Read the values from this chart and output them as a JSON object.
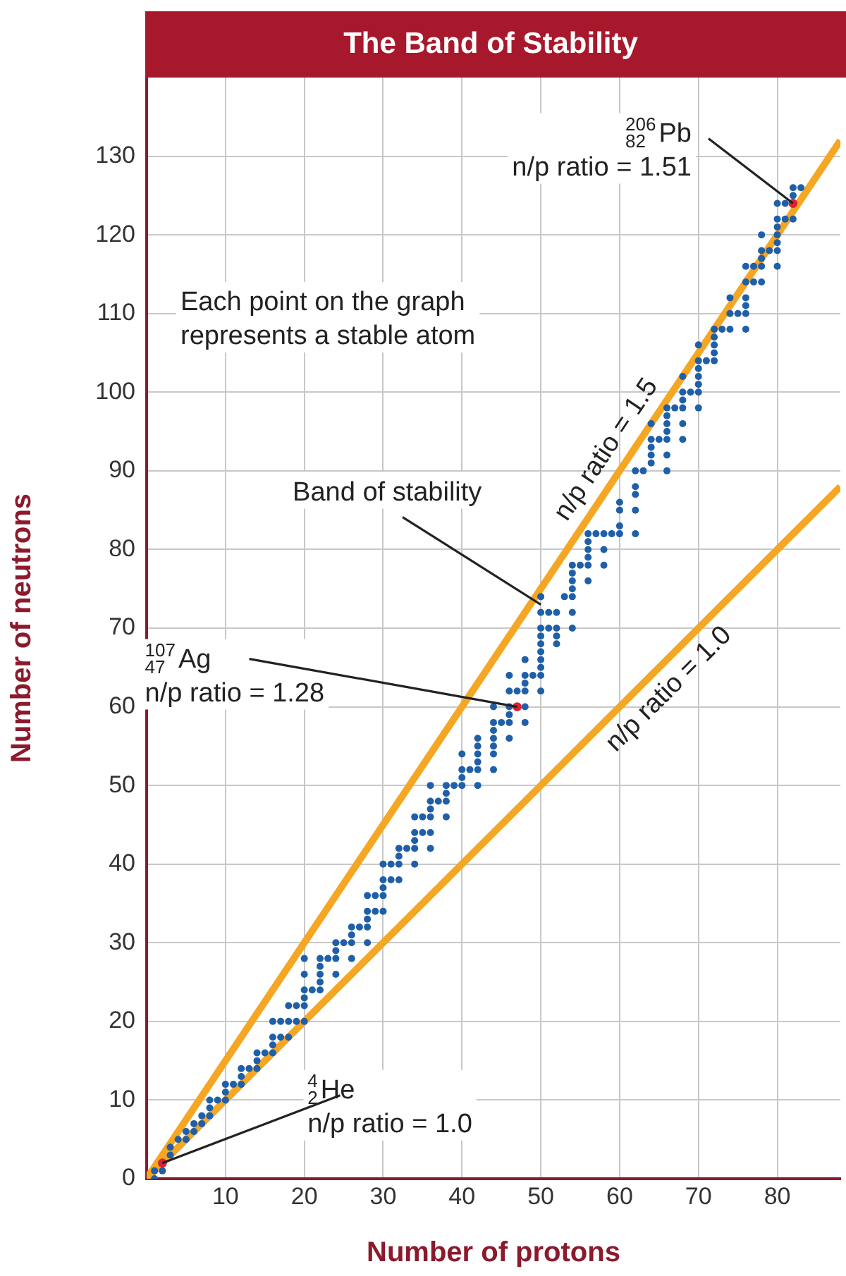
{
  "chart_data": {
    "type": "scatter",
    "title": "The Band of Stability",
    "xlabel": "Number of protons",
    "ylabel": "Number of neutrons",
    "xlim": [
      0,
      88
    ],
    "ylim": [
      0,
      140
    ],
    "xticks": [
      10,
      20,
      30,
      40,
      50,
      60,
      70,
      80
    ],
    "yticks": [
      0,
      10,
      20,
      30,
      40,
      50,
      60,
      70,
      80,
      90,
      100,
      110,
      120,
      130
    ],
    "grid": true,
    "legend": false,
    "marker": "circle",
    "series": [
      {
        "color": "#1f5fa8",
        "x": [
          1,
          1,
          2,
          3,
          3,
          4,
          5,
          5,
          6,
          6,
          7,
          7,
          8,
          8,
          8,
          9,
          10,
          10,
          10,
          11,
          12,
          12,
          12,
          13,
          14,
          14,
          14,
          15,
          16,
          16,
          16,
          16,
          17,
          17,
          18,
          18,
          18,
          19,
          19,
          20,
          20,
          20,
          20,
          20,
          20,
          21,
          22,
          22,
          22,
          22,
          22,
          23,
          24,
          24,
          24,
          24,
          25,
          26,
          26,
          26,
          26,
          27,
          28,
          28,
          28,
          28,
          28,
          29,
          29,
          30,
          30,
          30,
          30,
          30,
          31,
          31,
          32,
          32,
          32,
          32,
          33,
          34,
          34,
          34,
          34,
          34,
          35,
          35,
          36,
          36,
          36,
          36,
          36,
          36,
          37,
          38,
          38,
          38,
          38,
          39,
          40,
          40,
          40,
          40,
          41,
          42,
          42,
          42,
          42,
          42,
          42,
          44,
          44,
          44,
          44,
          44,
          44,
          44,
          45,
          46,
          46,
          46,
          46,
          46,
          46,
          47,
          48,
          48,
          48,
          48,
          48,
          48,
          49,
          50,
          50,
          50,
          50,
          50,
          50,
          50,
          50,
          50,
          50,
          51,
          51,
          52,
          52,
          52,
          52,
          53,
          54,
          54,
          54,
          54,
          54,
          54,
          54,
          55,
          56,
          56,
          56,
          56,
          56,
          56,
          57,
          58,
          58,
          58,
          59,
          60,
          60,
          60,
          60,
          62,
          62,
          62,
          62,
          62,
          63,
          64,
          64,
          64,
          64,
          64,
          65,
          66,
          66,
          66,
          66,
          66,
          66,
          66,
          67,
          68,
          68,
          68,
          68,
          68,
          68,
          69,
          70,
          70,
          70,
          70,
          70,
          70,
          70,
          71,
          72,
          72,
          72,
          72,
          72,
          73,
          74,
          74,
          74,
          75,
          76,
          76,
          76,
          76,
          76,
          76,
          77,
          77,
          78,
          78,
          78,
          78,
          78,
          79,
          80,
          80,
          80,
          80,
          80,
          80,
          80,
          81,
          81,
          82,
          82,
          82,
          83
        ],
        "values": [
          0,
          1,
          1,
          3,
          4,
          5,
          5,
          6,
          6,
          7,
          7,
          8,
          8,
          9,
          10,
          10,
          10,
          11,
          12,
          12,
          12,
          13,
          14,
          14,
          14,
          15,
          16,
          16,
          16,
          17,
          18,
          20,
          18,
          20,
          18,
          20,
          22,
          20,
          22,
          20,
          22,
          23,
          24,
          26,
          28,
          24,
          24,
          25,
          26,
          27,
          28,
          28,
          26,
          28,
          29,
          30,
          30,
          28,
          30,
          31,
          32,
          32,
          30,
          32,
          33,
          34,
          36,
          34,
          36,
          34,
          36,
          37,
          38,
          40,
          38,
          40,
          38,
          40,
          41,
          42,
          42,
          40,
          42,
          43,
          44,
          46,
          44,
          46,
          42,
          44,
          46,
          47,
          48,
          50,
          48,
          46,
          48,
          49,
          50,
          50,
          50,
          51,
          52,
          54,
          52,
          50,
          52,
          53,
          54,
          55,
          56,
          52,
          54,
          55,
          56,
          57,
          58,
          60,
          58,
          56,
          58,
          59,
          60,
          62,
          64,
          62,
          58,
          60,
          62,
          63,
          64,
          66,
          64,
          62,
          64,
          65,
          66,
          67,
          68,
          69,
          70,
          72,
          74,
          70,
          72,
          68,
          69,
          70,
          72,
          74,
          70,
          72,
          74,
          75,
          76,
          77,
          78,
          78,
          76,
          78,
          79,
          80,
          81,
          82,
          82,
          78,
          80,
          82,
          82,
          82,
          83,
          85,
          86,
          82,
          85,
          87,
          88,
          90,
          90,
          91,
          92,
          93,
          94,
          96,
          94,
          90,
          92,
          94,
          95,
          96,
          97,
          98,
          98,
          94,
          96,
          98,
          99,
          100,
          102,
          100,
          98,
          100,
          101,
          102,
          103,
          104,
          106,
          104,
          104,
          105,
          106,
          107,
          108,
          108,
          108,
          110,
          112,
          110,
          108,
          110,
          111,
          112,
          114,
          116,
          114,
          116,
          114,
          116,
          117,
          118,
          120,
          118,
          116,
          118,
          119,
          120,
          121,
          122,
          124,
          122,
          124,
          122,
          125,
          126,
          126
        ]
      },
      {
        "color": "#e02030",
        "x": [
          2,
          47,
          82
        ],
        "values": [
          2,
          60,
          124
        ]
      },
      {
        "type": "line",
        "name": "n/p ratio = 1.5",
        "marker": "none",
        "color": "#f5a623",
        "x": [
          0,
          88
        ],
        "values": [
          0,
          132
        ]
      },
      {
        "type": "line",
        "name": "n/p ratio = 1.0",
        "marker": "none",
        "color": "#f5a623",
        "x": [
          0,
          88
        ],
        "values": [
          0,
          88
        ]
      }
    ],
    "annotations": [
      "Each point on the graph\nrepresents a stable atom",
      {
        "text": "Band of stability",
        "x": 50,
        "y": 73
      },
      {
        "text": "$^{206}$$_{82}$Pb\nn/p ratio = 1.51",
        "x": 82,
        "y": 124
      },
      {
        "text": "$^{107}$$_{47}$Ag\nn/p ratio = 1.28",
        "x": 47,
        "y": 60
      },
      {
        "text": "$^{4}$$_{2}$He\nn/p ratio = 1.0",
        "x": 2,
        "y": 2
      }
    ]
  }
}
